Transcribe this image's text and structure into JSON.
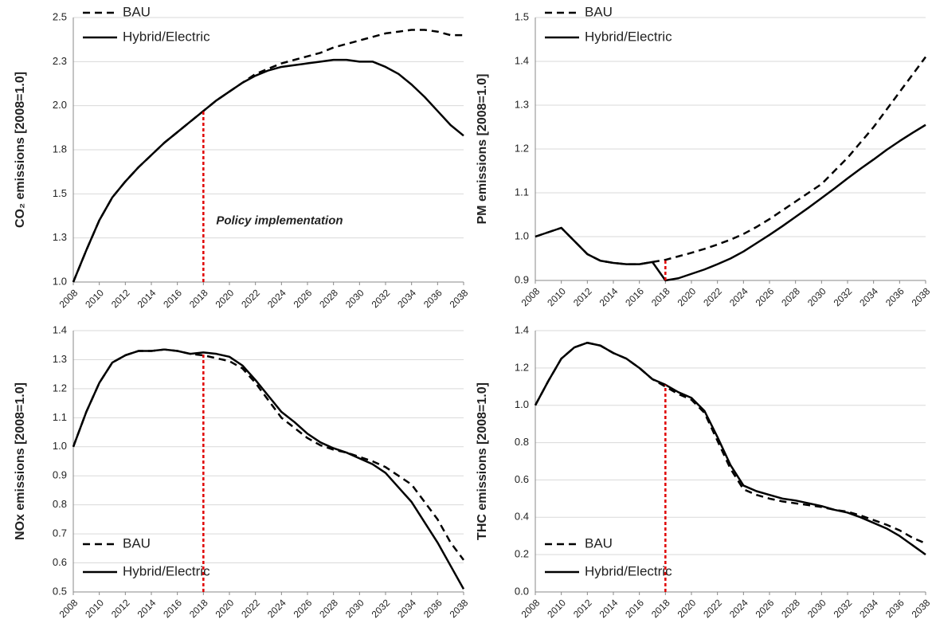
{
  "chart_data": [
    {
      "type": "line",
      "ylabel": "CO₂ emissions [2008=1.0]",
      "annotation": "Policy implementation",
      "x": [
        2008,
        2009,
        2010,
        2011,
        2012,
        2013,
        2014,
        2015,
        2016,
        2017,
        2018,
        2019,
        2020,
        2021,
        2022,
        2023,
        2024,
        2025,
        2026,
        2027,
        2028,
        2029,
        2030,
        2031,
        2032,
        2033,
        2034,
        2035,
        2036,
        2037,
        2038
      ],
      "xlim": [
        2008,
        2038
      ],
      "xticks": [
        2008,
        2010,
        2012,
        2014,
        2016,
        2018,
        2020,
        2022,
        2024,
        2026,
        2028,
        2030,
        2032,
        2034,
        2036,
        2038
      ],
      "ylim": [
        1,
        2.5
      ],
      "yticks": [
        {
          "value": 1,
          "label": "1.0"
        },
        {
          "value": 1.25,
          "label": "1.3"
        },
        1.5,
        {
          "value": 1.75,
          "label": "1.8"
        },
        {
          "value": 2,
          "label": "2.0"
        },
        {
          "value": 2.25,
          "label": "2.3"
        },
        2.5
      ],
      "grid": true,
      "legend": "upper left",
      "vline": {
        "x": 2018,
        "color": "#e00000"
      },
      "series": [
        {
          "name": "BAU",
          "color": "#000000",
          "style": "dashed",
          "values": [
            1.0,
            1.18,
            1.35,
            1.48,
            1.57,
            1.65,
            1.72,
            1.79,
            1.85,
            1.91,
            1.97,
            2.03,
            2.08,
            2.13,
            2.18,
            2.21,
            2.24,
            2.26,
            2.28,
            2.3,
            2.33,
            2.35,
            2.37,
            2.39,
            2.41,
            2.42,
            2.43,
            2.43,
            2.42,
            2.4,
            2.4
          ]
        },
        {
          "name": "Hybrid/Electric",
          "color": "#000000",
          "style": "solid",
          "values": [
            1.0,
            1.18,
            1.35,
            1.48,
            1.57,
            1.65,
            1.72,
            1.79,
            1.85,
            1.91,
            1.97,
            2.03,
            2.08,
            2.13,
            2.17,
            2.2,
            2.22,
            2.23,
            2.24,
            2.25,
            2.26,
            2.26,
            2.25,
            2.25,
            2.22,
            2.18,
            2.12,
            2.05,
            1.97,
            1.89,
            1.83
          ]
        }
      ]
    },
    {
      "type": "line",
      "ylabel": "PM emissions [2008=1.0]",
      "x": [
        2008,
        2009,
        2010,
        2011,
        2012,
        2013,
        2014,
        2015,
        2016,
        2017,
        2018,
        2019,
        2020,
        2021,
        2022,
        2023,
        2024,
        2025,
        2026,
        2027,
        2028,
        2029,
        2030,
        2031,
        2032,
        2033,
        2034,
        2035,
        2036,
        2037,
        2038
      ],
      "xlim": [
        2008,
        2038
      ],
      "xticks": [
        2008,
        2010,
        2012,
        2014,
        2016,
        2018,
        2020,
        2022,
        2024,
        2026,
        2028,
        2030,
        2032,
        2034,
        2036,
        2038
      ],
      "ylim": [
        0.9,
        1.5
      ],
      "yticks": [
        0.9,
        {
          "value": 1,
          "label": "1.0"
        },
        1.1,
        1.2,
        1.3,
        1.4,
        1.5
      ],
      "grid": true,
      "legend": "upper left",
      "vline": {
        "x": 2018,
        "color": "#e00000"
      },
      "series": [
        {
          "name": "BAU",
          "color": "#000000",
          "style": "dashed",
          "values": [
            1.0,
            1.01,
            1.02,
            0.99,
            0.96,
            0.945,
            0.94,
            0.937,
            0.937,
            0.942,
            0.947,
            0.955,
            0.963,
            0.972,
            0.982,
            0.993,
            1.006,
            1.022,
            1.04,
            1.06,
            1.08,
            1.1,
            1.12,
            1.15,
            1.18,
            1.215,
            1.25,
            1.29,
            1.33,
            1.37,
            1.41
          ]
        },
        {
          "name": "Hybrid/Electric",
          "color": "#000000",
          "style": "solid",
          "values": [
            1.0,
            1.01,
            1.02,
            0.99,
            0.96,
            0.945,
            0.94,
            0.937,
            0.937,
            0.942,
            0.9,
            0.905,
            0.915,
            0.925,
            0.937,
            0.95,
            0.966,
            0.985,
            1.004,
            1.024,
            1.045,
            1.066,
            1.088,
            1.11,
            1.133,
            1.155,
            1.176,
            1.198,
            1.218,
            1.237,
            1.255
          ]
        }
      ]
    },
    {
      "type": "line",
      "ylabel": "NOx emissions [2008=1.0]",
      "x": [
        2008,
        2009,
        2010,
        2011,
        2012,
        2013,
        2014,
        2015,
        2016,
        2017,
        2018,
        2019,
        2020,
        2021,
        2022,
        2023,
        2024,
        2025,
        2026,
        2027,
        2028,
        2029,
        2030,
        2031,
        2032,
        2033,
        2034,
        2035,
        2036,
        2037,
        2038
      ],
      "xlim": [
        2008,
        2038
      ],
      "xticks": [
        2008,
        2010,
        2012,
        2014,
        2016,
        2018,
        2020,
        2022,
        2024,
        2026,
        2028,
        2030,
        2032,
        2034,
        2036,
        2038
      ],
      "ylim": [
        0.5,
        1.4
      ],
      "yticks": [
        0.5,
        0.6,
        0.7,
        0.8,
        0.9,
        {
          "value": 1,
          "label": "1.0"
        },
        1.1,
        1.2,
        1.3,
        1.4
      ],
      "grid": true,
      "legend": "lower left",
      "vline": {
        "x": 2018,
        "color": "#e00000"
      },
      "series": [
        {
          "name": "BAU",
          "color": "#000000",
          "style": "dashed",
          "values": [
            1.0,
            1.12,
            1.22,
            1.29,
            1.315,
            1.33,
            1.33,
            1.335,
            1.33,
            1.32,
            1.315,
            1.305,
            1.295,
            1.27,
            1.22,
            1.16,
            1.1,
            1.065,
            1.03,
            1.005,
            0.99,
            0.98,
            0.965,
            0.95,
            0.93,
            0.9,
            0.87,
            0.81,
            0.75,
            0.67,
            0.61
          ]
        },
        {
          "name": "Hybrid/Electric",
          "color": "#000000",
          "style": "solid",
          "values": [
            1.0,
            1.12,
            1.22,
            1.29,
            1.315,
            1.33,
            1.33,
            1.335,
            1.33,
            1.32,
            1.325,
            1.32,
            1.31,
            1.28,
            1.23,
            1.175,
            1.12,
            1.085,
            1.045,
            1.015,
            0.995,
            0.98,
            0.96,
            0.94,
            0.91,
            0.86,
            0.81,
            0.74,
            0.67,
            0.59,
            0.51
          ]
        }
      ]
    },
    {
      "type": "line",
      "ylabel": "THC emissions [2008=1.0]",
      "x": [
        2008,
        2009,
        2010,
        2011,
        2012,
        2013,
        2014,
        2015,
        2016,
        2017,
        2018,
        2019,
        2020,
        2021,
        2022,
        2023,
        2024,
        2025,
        2026,
        2027,
        2028,
        2029,
        2030,
        2031,
        2032,
        2033,
        2034,
        2035,
        2036,
        2037,
        2038
      ],
      "xlim": [
        2008,
        2038
      ],
      "xticks": [
        2008,
        2010,
        2012,
        2014,
        2016,
        2018,
        2020,
        2022,
        2024,
        2026,
        2028,
        2030,
        2032,
        2034,
        2036,
        2038
      ],
      "ylim": [
        0,
        1.4
      ],
      "yticks": [
        {
          "value": 0,
          "label": "0.0"
        },
        0.2,
        0.4,
        0.6,
        0.8,
        {
          "value": 1,
          "label": "1.0"
        },
        1.2,
        1.4
      ],
      "grid": true,
      "legend": "lower left",
      "vline": {
        "x": 2018,
        "color": "#e00000"
      },
      "series": [
        {
          "name": "BAU",
          "color": "#000000",
          "style": "dashed",
          "values": [
            1.0,
            1.13,
            1.25,
            1.31,
            1.335,
            1.32,
            1.28,
            1.25,
            1.2,
            1.14,
            1.1,
            1.06,
            1.03,
            0.96,
            0.81,
            0.66,
            0.55,
            0.52,
            0.5,
            0.485,
            0.475,
            0.465,
            0.455,
            0.44,
            0.43,
            0.41,
            0.385,
            0.36,
            0.33,
            0.29,
            0.26
          ]
        },
        {
          "name": "Hybrid/Electric",
          "color": "#000000",
          "style": "solid",
          "values": [
            1.0,
            1.13,
            1.25,
            1.31,
            1.335,
            1.32,
            1.28,
            1.25,
            1.2,
            1.14,
            1.11,
            1.07,
            1.04,
            0.97,
            0.83,
            0.68,
            0.57,
            0.54,
            0.52,
            0.5,
            0.49,
            0.475,
            0.46,
            0.44,
            0.425,
            0.4,
            0.37,
            0.34,
            0.3,
            0.25,
            0.2
          ]
        }
      ]
    }
  ]
}
